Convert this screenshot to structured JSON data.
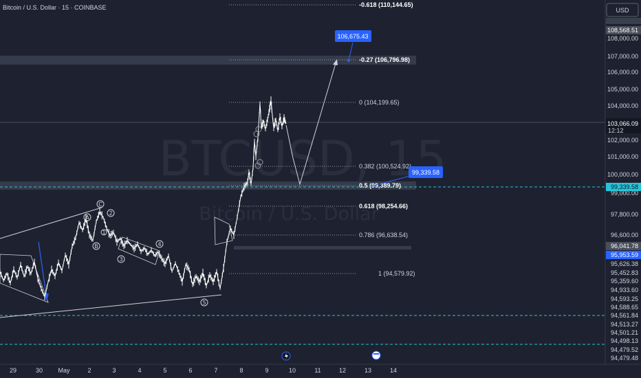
{
  "header": {
    "symbol_title": "Bitcoin / U.S. Dollar · 15 · COINBASE"
  },
  "currency_button": {
    "label": "USD"
  },
  "watermark": {
    "symbol": "BTCUSD, 15",
    "description": "Bitcoin / U.S. Dollar"
  },
  "chart_data": {
    "type": "line",
    "title": "Bitcoin / U.S. Dollar · 15 · COINBASE",
    "x_axis_labels": [
      "29",
      "30",
      "May",
      "2",
      "3",
      "4",
      "5",
      "6",
      "7",
      "8",
      "9",
      "10",
      "11",
      "12",
      "13",
      "14"
    ],
    "y_axis_labels": [
      "108,000.00",
      "107,000.00",
      "106,000.00",
      "105,000.00",
      "104,000.00",
      "102,000.00",
      "101,000.00",
      "100,000.00",
      "99,000.00",
      "97,800.00",
      "96,600.00"
    ],
    "price_tags": [
      {
        "label": "108,568.51",
        "kind": "gray"
      },
      {
        "label": "103,066.09",
        "sub": "12:12",
        "kind": "current"
      },
      {
        "label": "99,339.58",
        "kind": "cyan"
      },
      {
        "label": "96,041.78",
        "kind": "gray"
      },
      {
        "label": "95,953.59",
        "kind": "blue"
      },
      {
        "label": "95,626.38",
        "kind": "plain"
      },
      {
        "label": "95,452.83",
        "kind": "plain"
      },
      {
        "label": "95,359.60",
        "kind": "plain"
      },
      {
        "label": "94,933.60",
        "kind": "plain"
      },
      {
        "label": "94,593.25",
        "kind": "plain"
      },
      {
        "label": "94,588.65",
        "kind": "plain"
      },
      {
        "label": "94,561.84",
        "kind": "plain"
      },
      {
        "label": "94,513.27",
        "kind": "plain"
      },
      {
        "label": "94,501.21",
        "kind": "plain"
      },
      {
        "label": "94,498.13",
        "kind": "plain"
      },
      {
        "label": "94,479.52",
        "kind": "plain"
      },
      {
        "label": "94,479.48",
        "kind": "plain"
      }
    ],
    "fib_levels": [
      {
        "ratio": "-0.618",
        "label": "-0.618 (110,144.65)",
        "value": 110144.65,
        "bold": true
      },
      {
        "ratio": "-0.27",
        "label": "-0.27 (106,796.98)",
        "value": 106796.98,
        "bold": true
      },
      {
        "ratio": "0",
        "label": "0 (104,199.65)",
        "value": 104199.65,
        "bold": false
      },
      {
        "ratio": "0.382",
        "label": "0.382 (100,524.92)",
        "value": 100524.92,
        "bold": false
      },
      {
        "ratio": "0.5",
        "label": "0.5 (99,389.79)",
        "value": 99389.79,
        "bold": true
      },
      {
        "ratio": "0.618",
        "label": "0.618 (98,254.66)",
        "value": 98254.66,
        "bold": true
      },
      {
        "ratio": "0.786",
        "label": "0.786 (96,638.54)",
        "value": 96638.54,
        "bold": false
      },
      {
        "ratio": "1",
        "label": "1 (94,579.92)",
        "value": 94579.92,
        "bold": false
      }
    ],
    "callouts": [
      {
        "label": "106,675.43",
        "value": 106675.43
      },
      {
        "label": "99,339.58",
        "value": 99339.58
      }
    ],
    "wave_labels": {
      "corrective": [
        "A",
        "B",
        "C"
      ],
      "impulse": [
        "1",
        "2",
        "3",
        "4",
        "5"
      ]
    },
    "dashed_levels": [
      99339.58,
      94561.84,
      94498.13
    ],
    "projection": {
      "from": 104199.65,
      "low": 99389.79,
      "target": 106675.43
    },
    "colors": {
      "background": "#1e2230",
      "accent": "#2962ff",
      "cyan": "#26c6da",
      "text": "#d1d4dc",
      "zone": "#3a3f4f"
    }
  }
}
